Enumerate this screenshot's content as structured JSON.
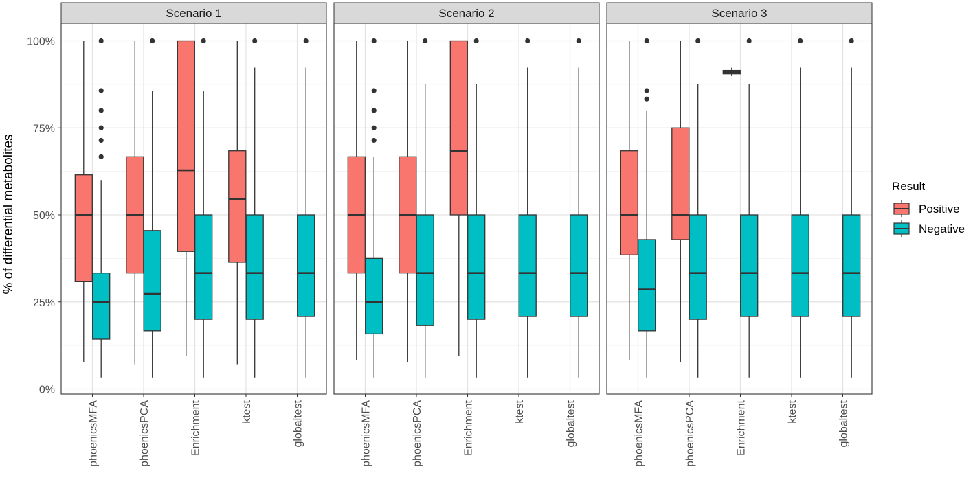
{
  "chart_data": {
    "type": "boxplot",
    "ylabel": "% of differential metabolites",
    "ylim": [
      0,
      100
    ],
    "y_ticks": [
      0,
      25,
      50,
      75,
      100
    ],
    "y_tick_labels": [
      "0%",
      "25%",
      "50%",
      "75%",
      "100%"
    ],
    "categories": [
      "phoenicsMFA",
      "phoenicsPCA",
      "Enrichment",
      "ktest",
      "globaltest"
    ],
    "legend": {
      "title": "Result",
      "position": "right",
      "items": [
        {
          "key": "Positive",
          "label": "Positive",
          "color": "#F8766D"
        },
        {
          "key": "Negative",
          "label": "Negative",
          "color": "#00BFC4"
        }
      ]
    },
    "panels": [
      {
        "title": "Scenario 1",
        "groups": [
          {
            "category": "phoenicsMFA",
            "positive": {
              "min": 7.7,
              "q1": 30.8,
              "median": 50,
              "q3": 61.5,
              "max": 100,
              "outliers": []
            },
            "negative": {
              "min": 3.3,
              "q1": 14.3,
              "median": 25,
              "q3": 33.3,
              "max": 60,
              "outliers": [
                66.7,
                71.4,
                75,
                80,
                85.7,
                100
              ]
            }
          },
          {
            "category": "phoenicsPCA",
            "positive": {
              "min": 7.1,
              "q1": 33.3,
              "median": 50,
              "q3": 66.7,
              "max": 100,
              "outliers": []
            },
            "negative": {
              "min": 3.3,
              "q1": 16.7,
              "median": 27.3,
              "q3": 45.5,
              "max": 85.7,
              "outliers": [
                100
              ]
            }
          },
          {
            "category": "Enrichment",
            "positive": {
              "min": 9.5,
              "q1": 39.5,
              "median": 62.8,
              "q3": 100,
              "max": 100,
              "outliers": []
            },
            "negative": {
              "min": 3.3,
              "q1": 20,
              "median": 33.3,
              "q3": 50,
              "max": 85.7,
              "outliers": [
                100
              ]
            }
          },
          {
            "category": "ktest",
            "positive": {
              "min": 7.1,
              "q1": 36.4,
              "median": 54.5,
              "q3": 68.4,
              "max": 100,
              "outliers": []
            },
            "negative": {
              "min": 3.3,
              "q1": 20,
              "median": 33.3,
              "q3": 50,
              "max": 92.3,
              "outliers": [
                100
              ]
            }
          },
          {
            "category": "globaltest",
            "positive": null,
            "negative": {
              "min": 3.3,
              "q1": 20.8,
              "median": 33.3,
              "q3": 50,
              "max": 92.3,
              "outliers": [
                100
              ]
            }
          }
        ]
      },
      {
        "title": "Scenario 2",
        "groups": [
          {
            "category": "phoenicsMFA",
            "positive": {
              "min": 8.3,
              "q1": 33.3,
              "median": 50,
              "q3": 66.7,
              "max": 100,
              "outliers": []
            },
            "negative": {
              "min": 3.3,
              "q1": 15.8,
              "median": 25,
              "q3": 37.5,
              "max": 66.7,
              "outliers": [
                71.4,
                75,
                80,
                85.7,
                100
              ]
            }
          },
          {
            "category": "phoenicsPCA",
            "positive": {
              "min": 7.7,
              "q1": 33.3,
              "median": 50,
              "q3": 66.7,
              "max": 100,
              "outliers": []
            },
            "negative": {
              "min": 3.3,
              "q1": 18.2,
              "median": 33.3,
              "q3": 50,
              "max": 87.5,
              "outliers": [
                100
              ]
            }
          },
          {
            "category": "Enrichment",
            "positive": {
              "min": 9.5,
              "q1": 50,
              "median": 68.4,
              "q3": 100,
              "max": 100,
              "outliers": []
            },
            "negative": {
              "min": 3.3,
              "q1": 20,
              "median": 33.3,
              "q3": 50,
              "max": 87.5,
              "outliers": [
                100
              ]
            }
          },
          {
            "category": "ktest",
            "positive": null,
            "negative": {
              "min": 3.3,
              "q1": 20.8,
              "median": 33.3,
              "q3": 50,
              "max": 92.3,
              "outliers": [
                100
              ]
            }
          },
          {
            "category": "globaltest",
            "positive": null,
            "negative": {
              "min": 3.3,
              "q1": 20.8,
              "median": 33.3,
              "q3": 50,
              "max": 92.3,
              "outliers": [
                100
              ]
            }
          }
        ]
      },
      {
        "title": "Scenario 3",
        "groups": [
          {
            "category": "phoenicsMFA",
            "positive": {
              "min": 8.3,
              "q1": 38.5,
              "median": 50,
              "q3": 68.4,
              "max": 100,
              "outliers": []
            },
            "negative": {
              "min": 3.3,
              "q1": 16.7,
              "median": 28.6,
              "q3": 42.9,
              "max": 80,
              "outliers": [
                83.3,
                85.7,
                100
              ]
            }
          },
          {
            "category": "phoenicsPCA",
            "positive": {
              "min": 7.7,
              "q1": 42.9,
              "median": 50,
              "q3": 75,
              "max": 100,
              "outliers": []
            },
            "negative": {
              "min": 3.3,
              "q1": 20,
              "median": 33.3,
              "q3": 50,
              "max": 87.5,
              "outliers": [
                100
              ]
            }
          },
          {
            "category": "Enrichment",
            "positive": {
              "min": 90,
              "q1": 90.5,
              "median": 91,
              "q3": 91.5,
              "max": 92.3,
              "outliers": []
            },
            "negative": {
              "min": 3.3,
              "q1": 20.8,
              "median": 33.3,
              "q3": 50,
              "max": 87.5,
              "outliers": [
                100
              ]
            }
          },
          {
            "category": "ktest",
            "positive": null,
            "negative": {
              "min": 3.3,
              "q1": 20.8,
              "median": 33.3,
              "q3": 50,
              "max": 92.3,
              "outliers": [
                100
              ]
            }
          },
          {
            "category": "globaltest",
            "positive": null,
            "negative": {
              "min": 3.3,
              "q1": 20.8,
              "median": 33.3,
              "q3": 50,
              "max": 92.3,
              "outliers": [
                100
              ]
            }
          }
        ]
      }
    ]
  }
}
